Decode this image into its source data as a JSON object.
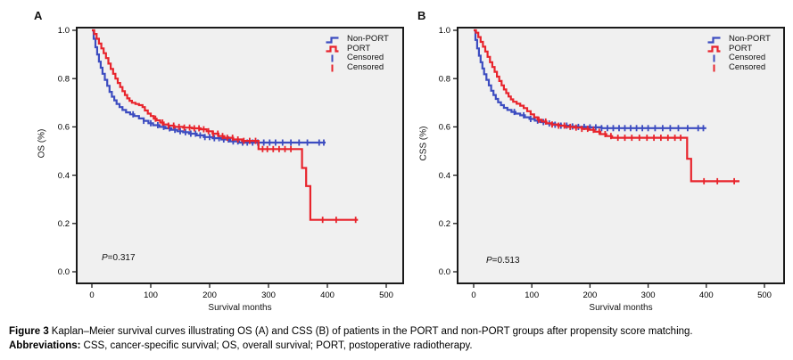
{
  "colors": {
    "non_port": "#3c4cc0",
    "port": "#e8242c",
    "plot_bg": "#f0f0f0",
    "frame": "#1a1a1a",
    "text": "#000000"
  },
  "caption": {
    "label": "Figure 3",
    "text": "Kaplan–Meier survival curves illustrating OS (A) and CSS (B) of patients in the PORT and non-PORT groups after propensity score matching.",
    "abbr_label": "Abbreviations:",
    "abbr_text": "CSS, cancer-specific survival; OS, overall survival; PORT, postoperative radiotherapy."
  },
  "chart_data": [
    {
      "type": "line",
      "subtype": "kaplan_meier_step",
      "panel_label": "A",
      "title": "",
      "xlabel": "Survival months",
      "ylabel": "OS (%)",
      "xlim": [
        -25,
        530
      ],
      "ylim": [
        -0.05,
        1.01
      ],
      "x_ticks": [
        "0",
        "100",
        "200",
        "300",
        "400",
        "500"
      ],
      "y_ticks": [
        "0.0",
        "0.2",
        "0.4",
        "0.6",
        "0.8",
        "1.0"
      ],
      "grid": false,
      "legend_position": "top-right",
      "legend": [
        "Non-PORT",
        "PORT",
        "Censored",
        "Censored"
      ],
      "p_label": "P",
      "p_rest": "=0.317",
      "series": [
        {
          "name": "Non-PORT",
          "color": "#3c4cc0",
          "steps": [
            [
              0,
              1.0
            ],
            [
              3,
              0.965
            ],
            [
              6,
              0.93
            ],
            [
              9,
              0.9
            ],
            [
              12,
              0.87
            ],
            [
              15,
              0.845
            ],
            [
              18,
              0.82
            ],
            [
              22,
              0.795
            ],
            [
              26,
              0.77
            ],
            [
              30,
              0.745
            ],
            [
              34,
              0.725
            ],
            [
              38,
              0.71
            ],
            [
              42,
              0.695
            ],
            [
              47,
              0.682
            ],
            [
              52,
              0.67
            ],
            [
              58,
              0.66
            ],
            [
              65,
              0.652
            ],
            [
              72,
              0.645
            ],
            [
              80,
              0.635
            ],
            [
              88,
              0.625
            ],
            [
              96,
              0.615
            ],
            [
              104,
              0.607
            ],
            [
              115,
              0.6
            ],
            [
              125,
              0.594
            ],
            [
              135,
              0.588
            ],
            [
              145,
              0.582
            ],
            [
              155,
              0.578
            ],
            [
              165,
              0.572
            ],
            [
              178,
              0.565
            ],
            [
              190,
              0.558
            ],
            [
              205,
              0.553
            ],
            [
              220,
              0.548
            ],
            [
              235,
              0.54
            ],
            [
              250,
              0.535
            ],
            [
              397,
              0.535
            ]
          ],
          "censor_times": [
            70,
            88,
            100,
            112,
            122,
            132,
            141,
            150,
            159,
            168,
            176,
            184,
            192,
            200,
            208,
            216,
            224,
            232,
            240,
            248,
            256,
            264,
            273,
            282,
            292,
            302,
            312,
            324,
            338,
            352,
            366,
            386,
            394
          ]
        },
        {
          "name": "PORT",
          "color": "#e8242c",
          "steps": [
            [
              0,
              1.0
            ],
            [
              4,
              0.985
            ],
            [
              8,
              0.965
            ],
            [
              12,
              0.945
            ],
            [
              16,
              0.925
            ],
            [
              20,
              0.905
            ],
            [
              24,
              0.885
            ],
            [
              28,
              0.862
            ],
            [
              32,
              0.84
            ],
            [
              36,
              0.82
            ],
            [
              40,
              0.8
            ],
            [
              44,
              0.782
            ],
            [
              48,
              0.765
            ],
            [
              52,
              0.748
            ],
            [
              56,
              0.732
            ],
            [
              60,
              0.718
            ],
            [
              64,
              0.708
            ],
            [
              68,
              0.7
            ],
            [
              74,
              0.695
            ],
            [
              80,
              0.69
            ],
            [
              86,
              0.682
            ],
            [
              90,
              0.668
            ],
            [
              95,
              0.655
            ],
            [
              100,
              0.645
            ],
            [
              105,
              0.634
            ],
            [
              110,
              0.627
            ],
            [
              116,
              0.618
            ],
            [
              122,
              0.61
            ],
            [
              130,
              0.605
            ],
            [
              140,
              0.6
            ],
            [
              155,
              0.597
            ],
            [
              170,
              0.594
            ],
            [
              185,
              0.59
            ],
            [
              195,
              0.582
            ],
            [
              205,
              0.572
            ],
            [
              215,
              0.562
            ],
            [
              225,
              0.555
            ],
            [
              240,
              0.548
            ],
            [
              255,
              0.542
            ],
            [
              283,
              0.508
            ],
            [
              350,
              0.508
            ],
            [
              357,
              0.43
            ],
            [
              364,
              0.355
            ],
            [
              371,
              0.215
            ],
            [
              452,
              0.215
            ]
          ],
          "censor_times": [
            108,
            120,
            130,
            139,
            148,
            157,
            166,
            174,
            182,
            190,
            198,
            206,
            214,
            222,
            230,
            239,
            248,
            258,
            268,
            278,
            290,
            298,
            308,
            318,
            328,
            338,
            392,
            415,
            448
          ]
        }
      ]
    },
    {
      "type": "line",
      "subtype": "kaplan_meier_step",
      "panel_label": "B",
      "title": "",
      "xlabel": "Survival months",
      "ylabel": "CSS (%)",
      "xlim": [
        -25,
        530
      ],
      "ylim": [
        -0.05,
        1.01
      ],
      "x_ticks": [
        "0",
        "100",
        "200",
        "300",
        "400",
        "500"
      ],
      "y_ticks": [
        "0.0",
        "0.2",
        "0.4",
        "0.6",
        "0.8",
        "1.0"
      ],
      "grid": false,
      "legend_position": "top-right",
      "legend": [
        "Non-PORT",
        "PORT",
        "Censored",
        "Censored"
      ],
      "p_label": "P",
      "p_rest": "=0.513",
      "series": [
        {
          "name": "Non-PORT",
          "color": "#3c4cc0",
          "steps": [
            [
              0,
              1.0
            ],
            [
              3,
              0.96
            ],
            [
              6,
              0.925
            ],
            [
              9,
              0.895
            ],
            [
              12,
              0.868
            ],
            [
              15,
              0.842
            ],
            [
              18,
              0.818
            ],
            [
              22,
              0.795
            ],
            [
              26,
              0.772
            ],
            [
              30,
              0.75
            ],
            [
              34,
              0.732
            ],
            [
              38,
              0.716
            ],
            [
              42,
              0.702
            ],
            [
              47,
              0.69
            ],
            [
              52,
              0.679
            ],
            [
              58,
              0.67
            ],
            [
              65,
              0.662
            ],
            [
              72,
              0.655
            ],
            [
              80,
              0.648
            ],
            [
              88,
              0.64
            ],
            [
              96,
              0.633
            ],
            [
              105,
              0.626
            ],
            [
              115,
              0.62
            ],
            [
              125,
              0.614
            ],
            [
              137,
              0.609
            ],
            [
              150,
              0.605
            ],
            [
              165,
              0.602
            ],
            [
              180,
              0.6
            ],
            [
              200,
              0.598
            ],
            [
              220,
              0.595
            ],
            [
              400,
              0.595
            ]
          ],
          "censor_times": [
            70,
            86,
            98,
            110,
            120,
            130,
            140,
            150,
            160,
            170,
            180,
            190,
            200,
            210,
            220,
            230,
            240,
            250,
            260,
            270,
            280,
            290,
            300,
            312,
            325,
            338,
            352,
            368,
            386,
            395
          ]
        },
        {
          "name": "PORT",
          "color": "#e8242c",
          "steps": [
            [
              0,
              1.0
            ],
            [
              4,
              0.99
            ],
            [
              8,
              0.972
            ],
            [
              12,
              0.952
            ],
            [
              16,
              0.932
            ],
            [
              20,
              0.912
            ],
            [
              24,
              0.89
            ],
            [
              28,
              0.868
            ],
            [
              32,
              0.848
            ],
            [
              36,
              0.828
            ],
            [
              40,
              0.808
            ],
            [
              44,
              0.79
            ],
            [
              48,
              0.772
            ],
            [
              52,
              0.755
            ],
            [
              56,
              0.74
            ],
            [
              60,
              0.726
            ],
            [
              64,
              0.714
            ],
            [
              68,
              0.704
            ],
            [
              74,
              0.696
            ],
            [
              80,
              0.688
            ],
            [
              86,
              0.678
            ],
            [
              92,
              0.665
            ],
            [
              98,
              0.652
            ],
            [
              104,
              0.64
            ],
            [
              110,
              0.63
            ],
            [
              117,
              0.622
            ],
            [
              125,
              0.615
            ],
            [
              134,
              0.61
            ],
            [
              145,
              0.605
            ],
            [
              158,
              0.6
            ],
            [
              172,
              0.597
            ],
            [
              186,
              0.592
            ],
            [
              198,
              0.588
            ],
            [
              208,
              0.58
            ],
            [
              218,
              0.57
            ],
            [
              228,
              0.562
            ],
            [
              238,
              0.555
            ],
            [
              360,
              0.555
            ],
            [
              367,
              0.468
            ],
            [
              374,
              0.375
            ],
            [
              457,
              0.375
            ]
          ],
          "censor_times": [
            112,
            124,
            135,
            146,
            156,
            166,
            176,
            186,
            196,
            206,
            216,
            226,
            236,
            248,
            260,
            272,
            285,
            298,
            310,
            322,
            334,
            346,
            356,
            396,
            419,
            448
          ]
        }
      ]
    }
  ]
}
